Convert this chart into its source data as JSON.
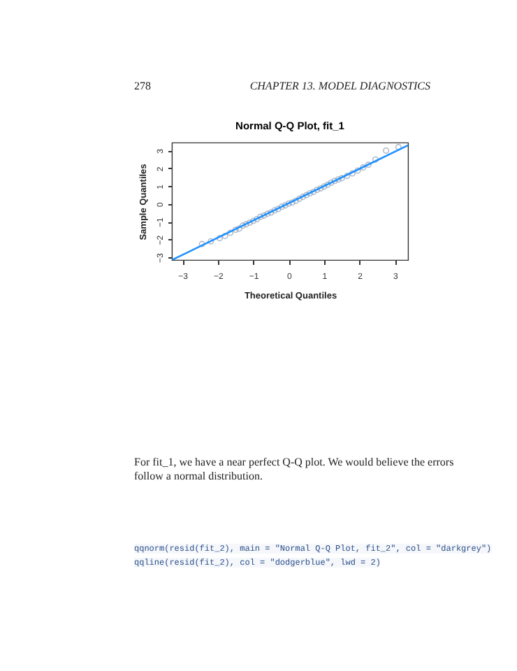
{
  "chart_data": {
    "type": "scatter",
    "title": "Normal Q-Q Plot, fit_1",
    "xlabel": "Theoretical Quantiles",
    "ylabel": "Sample Quantiles",
    "annotations": [
      "278",
      "CHAPTER 13.  MODEL DIAGNOSTICS",
      "For fit_1, we have a near perfect Q-Q plot. We would believe the errors follow a normal distribution.",
      "qqnorm(resid(fit_2), main = \"Normal Q-Q Plot, fit_2\", col = \"darkgrey\")",
      "qqline(resid(fit_2), col = \"dodgerblue\", lwd = 2)"
    ],
    "x": [
      -2.45,
      -2.2,
      -1.95,
      -1.8,
      -1.65,
      -1.5,
      -1.4,
      -1.3,
      -1.2,
      -1.1,
      -1.0,
      -0.9,
      -0.8,
      -0.7,
      -0.6,
      -0.5,
      -0.4,
      -0.3,
      -0.2,
      -0.1,
      0,
      0.1,
      0.2,
      0.3,
      0.4,
      0.5,
      0.6,
      0.7,
      0.8,
      0.9,
      1.0,
      1.1,
      1.2,
      1.3,
      1.4,
      1.5,
      1.65,
      1.8,
      1.95,
      2.1,
      2.25,
      2.45,
      2.75,
      3.1
    ],
    "series": [
      {
        "color": "#8e9fb6",
        "marker": "circle",
        "values": [
          -2.25,
          -2.1,
          -1.92,
          -1.8,
          -1.62,
          -1.45,
          -1.38,
          -1.22,
          -1.14,
          -1.05,
          -0.95,
          -0.85,
          -0.72,
          -0.65,
          -0.55,
          -0.48,
          -0.36,
          -0.28,
          -0.16,
          -0.08,
          0.02,
          0.08,
          0.18,
          0.3,
          0.4,
          0.5,
          0.6,
          0.68,
          0.8,
          0.88,
          0.98,
          1.08,
          1.2,
          1.3,
          1.38,
          1.45,
          1.58,
          1.72,
          1.88,
          2.05,
          2.2,
          2.5,
          3.0,
          3.2
        ]
      },
      {
        "type": "line",
        "color": "#1e90ff",
        "x": [
          -3.3,
          3.37
        ],
        "values": [
          -3.15,
          3.3
        ]
      }
    ],
    "xlim": [
      -3.3,
      3.37
    ],
    "ylim": [
      -3.15,
      3.45
    ],
    "xticks": [
      -3,
      -2,
      -1,
      0,
      1,
      2,
      3
    ],
    "yticks": [
      -3,
      -2,
      -1,
      0,
      1,
      2,
      3
    ],
    "grid": false
  }
}
